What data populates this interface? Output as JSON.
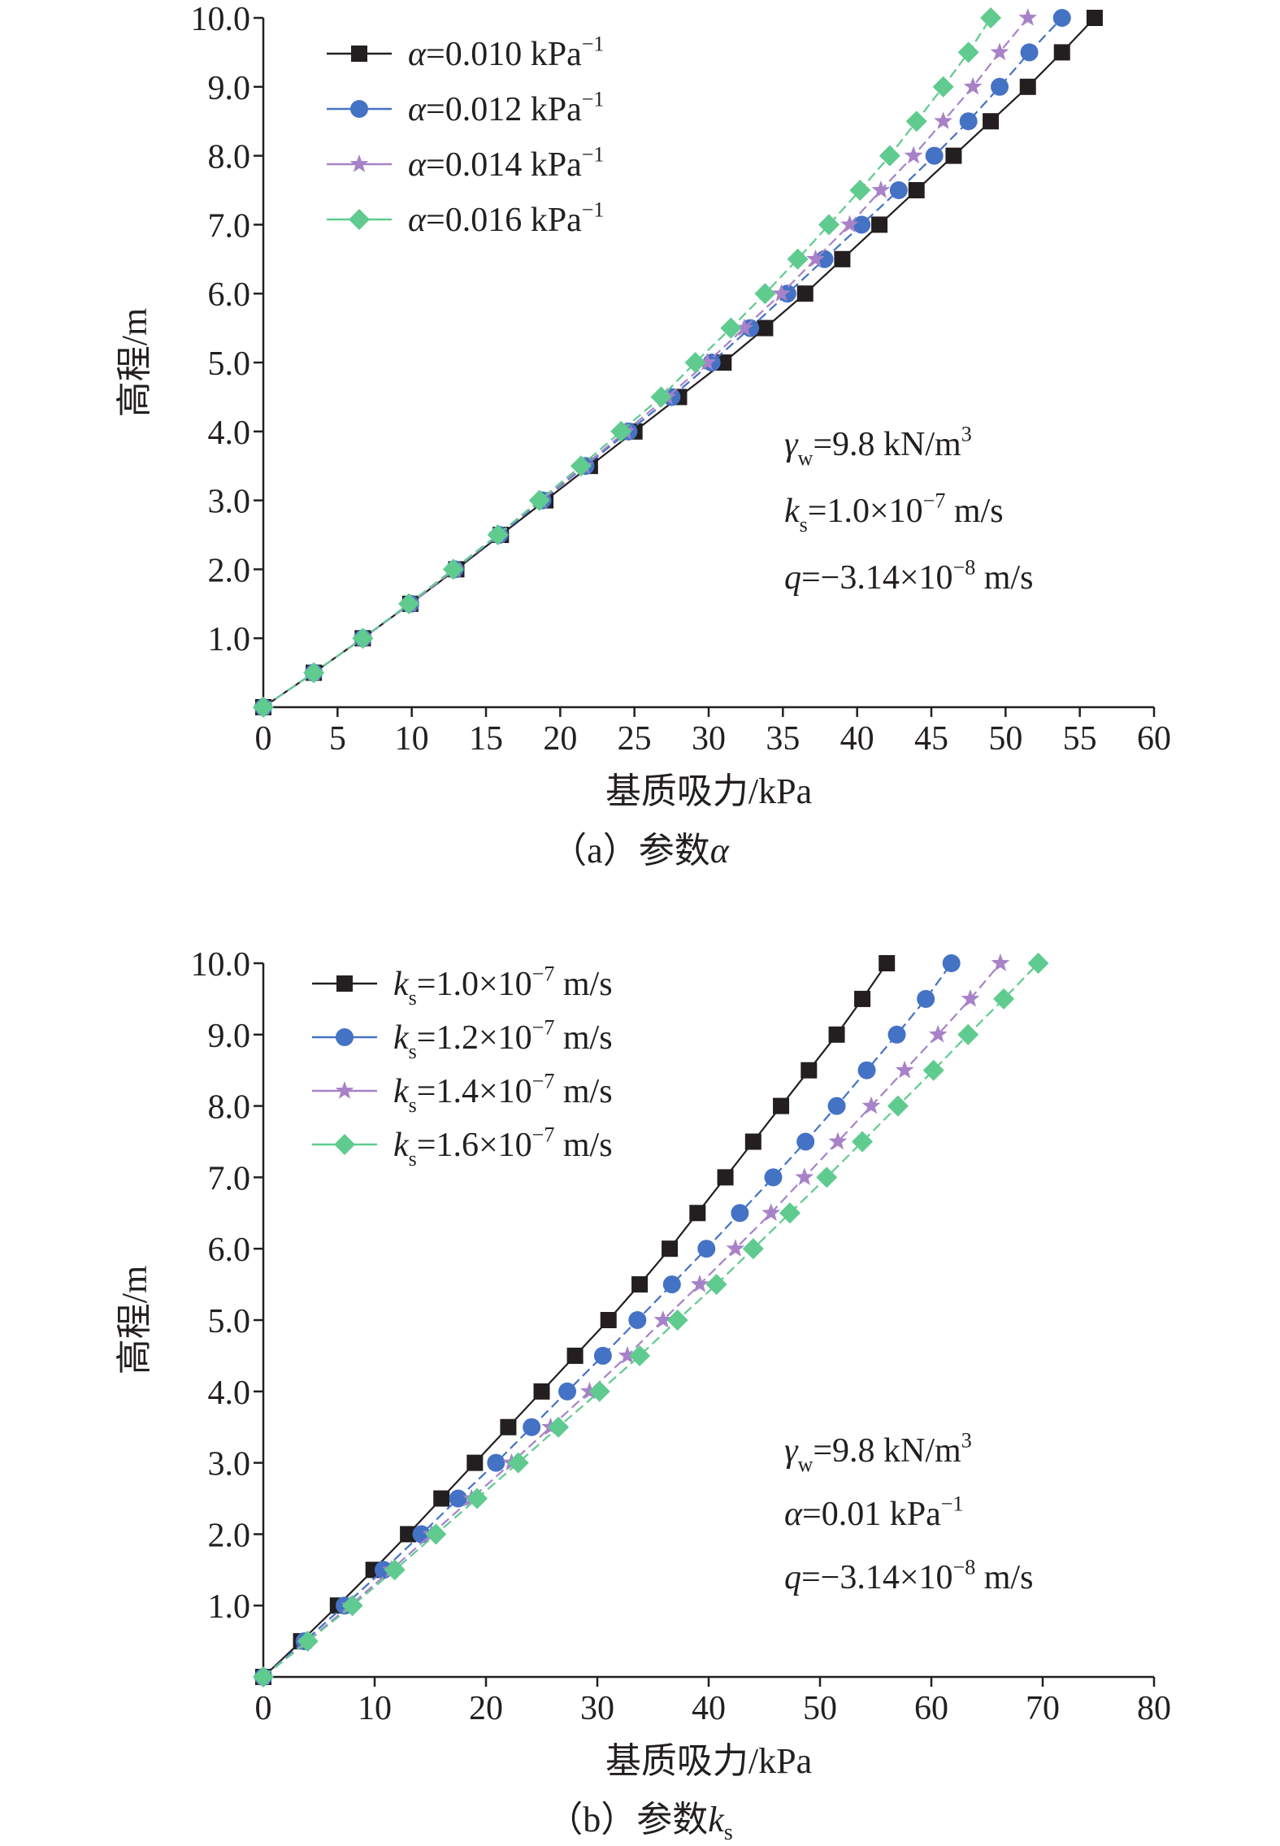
{
  "chart_data": [
    {
      "type": "line",
      "caption_prefix": "（a）参数",
      "caption_symbol": "α",
      "xlabel": "基质吸力/kPa",
      "ylabel": "高程/m",
      "xlim": [
        0,
        60
      ],
      "ylim": [
        0,
        10
      ],
      "xticks": [
        "0",
        "5",
        "10",
        "15",
        "20",
        "25",
        "30",
        "35",
        "40",
        "45",
        "50",
        "55",
        "60"
      ],
      "yticks": [
        "1.0",
        "2.0",
        "3.0",
        "4.0",
        "5.0",
        "6.0",
        "7.0",
        "8.0",
        "9.0",
        "10.0"
      ],
      "legend_position": "top-left",
      "annotations": [
        {
          "sym": "γ",
          "sub": "w",
          "val": "=9.8 kN/m",
          "sup": "3",
          "tail": ""
        },
        {
          "sym": "k",
          "sub": "s",
          "val": "=1.0×10",
          "sup": "−7",
          "tail": " m/s"
        },
        {
          "sym": "q",
          "sub": "",
          "val": "=−3.14×10",
          "sup": "−8",
          "tail": " m/s"
        }
      ],
      "series": [
        {
          "name_sym": "α",
          "name_sub": "",
          "name_val": "=0.010 kPa",
          "name_sup": "−1",
          "name_tail": "",
          "marker": "square",
          "color": "#231f20",
          "x": [
            0,
            3.4,
            6.7,
            9.9,
            13.0,
            16.0,
            19.0,
            22.0,
            25.0,
            28.0,
            31.0,
            33.8,
            36.5,
            39.0,
            41.5,
            44.0,
            46.5,
            49.0,
            51.5,
            53.8,
            56.0
          ],
          "y": [
            0,
            0.5,
            1.0,
            1.5,
            2.0,
            2.5,
            3.0,
            3.5,
            4.0,
            4.5,
            5.0,
            5.5,
            6.0,
            6.5,
            7.0,
            7.5,
            8.0,
            8.5,
            9.0,
            9.5,
            10.0
          ]
        },
        {
          "name_sym": "α",
          "name_sub": "",
          "name_val": "=0.012 kPa",
          "name_sup": "−1",
          "name_tail": "",
          "marker": "circle",
          "color": "#4472c4",
          "x": [
            0,
            3.4,
            6.7,
            9.9,
            12.9,
            15.9,
            18.8,
            21.7,
            24.6,
            27.5,
            30.2,
            32.8,
            35.3,
            37.8,
            40.3,
            42.8,
            45.2,
            47.5,
            49.6,
            51.6,
            53.8
          ],
          "y": [
            0,
            0.5,
            1.0,
            1.5,
            2.0,
            2.5,
            3.0,
            3.5,
            4.0,
            4.5,
            5.0,
            5.5,
            6.0,
            6.5,
            7.0,
            7.5,
            8.0,
            8.5,
            9.0,
            9.5,
            10.0
          ]
        },
        {
          "name_sym": "α",
          "name_sub": "",
          "name_val": "=0.014 kPa",
          "name_sup": "−1",
          "name_tail": "",
          "marker": "star",
          "color": "#a882c8",
          "x": [
            0,
            3.4,
            6.7,
            9.9,
            12.9,
            15.8,
            18.7,
            21.6,
            24.4,
            27.2,
            29.9,
            32.4,
            34.9,
            37.2,
            39.5,
            41.6,
            43.8,
            45.8,
            47.8,
            49.6,
            51.5
          ],
          "y": [
            0,
            0.5,
            1.0,
            1.5,
            2.0,
            2.5,
            3.0,
            3.5,
            4.0,
            4.5,
            5.0,
            5.5,
            6.0,
            6.5,
            7.0,
            7.5,
            8.0,
            8.5,
            9.0,
            9.5,
            10.0
          ]
        },
        {
          "name_sym": "α",
          "name_sub": "",
          "name_val": "=0.016 kPa",
          "name_sup": "−1",
          "name_tail": "",
          "marker": "diamond",
          "color": "#5fcb8f",
          "x": [
            0,
            3.4,
            6.7,
            9.8,
            12.8,
            15.8,
            18.6,
            21.4,
            24.1,
            26.8,
            29.1,
            31.5,
            33.8,
            36.0,
            38.1,
            40.2,
            42.2,
            44.0,
            45.8,
            47.5,
            49.0
          ],
          "y": [
            0,
            0.5,
            1.0,
            1.5,
            2.0,
            2.5,
            3.0,
            3.5,
            4.0,
            4.5,
            5.0,
            5.5,
            6.0,
            6.5,
            7.0,
            7.5,
            8.0,
            8.5,
            9.0,
            9.5,
            10.0
          ]
        }
      ]
    },
    {
      "type": "line",
      "caption_prefix": "（b）参数",
      "caption_symbol": "k",
      "caption_sub": "s",
      "xlabel": "基质吸力/kPa",
      "ylabel": "高程/m",
      "xlim": [
        0,
        80
      ],
      "ylim": [
        0,
        10
      ],
      "xticks": [
        "0",
        "10",
        "20",
        "30",
        "40",
        "50",
        "60",
        "70",
        "80"
      ],
      "yticks": [
        "1.0",
        "2.0",
        "3.0",
        "4.0",
        "5.0",
        "6.0",
        "7.0",
        "8.0",
        "9.0",
        "10.0"
      ],
      "legend_position": "top-left",
      "annotations": [
        {
          "sym": "γ",
          "sub": "w",
          "val": "=9.8 kN/m",
          "sup": "3",
          "tail": ""
        },
        {
          "sym": "α",
          "sub": "",
          "val": "=0.01 kPa",
          "sup": "−1",
          "tail": ""
        },
        {
          "sym": "q",
          "sub": "",
          "val": "=−3.14×10",
          "sup": "−8",
          "tail": " m/s"
        }
      ],
      "series": [
        {
          "name_sym": "k",
          "name_sub": "s",
          "name_val": "=1.0×10",
          "name_sup": "−7",
          "name_tail": " m/s",
          "marker": "square",
          "color": "#231f20",
          "x": [
            0,
            3.4,
            6.7,
            9.9,
            13.0,
            16.0,
            19.0,
            22.0,
            25.0,
            28.0,
            31.0,
            33.8,
            36.5,
            39.0,
            41.5,
            44.0,
            46.5,
            49.0,
            51.5,
            53.8,
            56.0
          ],
          "y": [
            0,
            0.5,
            1.0,
            1.5,
            2.0,
            2.5,
            3.0,
            3.5,
            4.0,
            4.5,
            5.0,
            5.5,
            6.0,
            6.5,
            7.0,
            7.5,
            8.0,
            8.5,
            9.0,
            9.5,
            10.0
          ]
        },
        {
          "name_sym": "k",
          "name_sub": "s",
          "name_val": "=1.2×10",
          "name_sup": "−7",
          "name_tail": " m/s",
          "marker": "circle",
          "color": "#4472c4",
          "x": [
            0,
            3.7,
            7.3,
            10.8,
            14.2,
            17.5,
            20.9,
            24.1,
            27.3,
            30.5,
            33.6,
            36.7,
            39.8,
            42.8,
            45.8,
            48.7,
            51.5,
            54.2,
            56.9,
            59.5,
            61.8
          ],
          "y": [
            0,
            0.5,
            1.0,
            1.5,
            2.0,
            2.5,
            3.0,
            3.5,
            4.0,
            4.5,
            5.0,
            5.5,
            6.0,
            6.5,
            7.0,
            7.5,
            8.0,
            8.5,
            9.0,
            9.5,
            10.0
          ]
        },
        {
          "name_sym": "k",
          "name_sub": "s",
          "name_val": "=1.4×10",
          "name_sup": "−7",
          "name_tail": " m/s",
          "marker": "star",
          "color": "#a882c8",
          "x": [
            0,
            3.9,
            7.8,
            11.5,
            15.1,
            18.7,
            22.3,
            25.8,
            29.3,
            32.7,
            35.9,
            39.2,
            42.4,
            45.6,
            48.6,
            51.6,
            54.6,
            57.6,
            60.6,
            63.5,
            66.2
          ],
          "y": [
            0,
            0.5,
            1.0,
            1.5,
            2.0,
            2.5,
            3.0,
            3.5,
            4.0,
            4.5,
            5.0,
            5.5,
            6.0,
            6.5,
            7.0,
            7.5,
            8.0,
            8.5,
            9.0,
            9.5,
            10.0
          ]
        },
        {
          "name_sym": "k",
          "name_sub": "s",
          "name_val": "=1.6×10",
          "name_sup": "−7",
          "name_tail": " m/s",
          "marker": "diamond",
          "color": "#5fcb8f",
          "x": [
            0,
            4.0,
            8.0,
            11.8,
            15.5,
            19.2,
            22.9,
            26.5,
            30.2,
            33.8,
            37.2,
            40.7,
            44.0,
            47.3,
            50.6,
            53.8,
            57.0,
            60.2,
            63.3,
            66.5,
            69.6
          ],
          "y": [
            0,
            0.5,
            1.0,
            1.5,
            2.0,
            2.5,
            3.0,
            3.5,
            4.0,
            4.5,
            5.0,
            5.5,
            6.0,
            6.5,
            7.0,
            7.5,
            8.0,
            8.5,
            9.0,
            9.5,
            10.0
          ]
        }
      ]
    }
  ]
}
